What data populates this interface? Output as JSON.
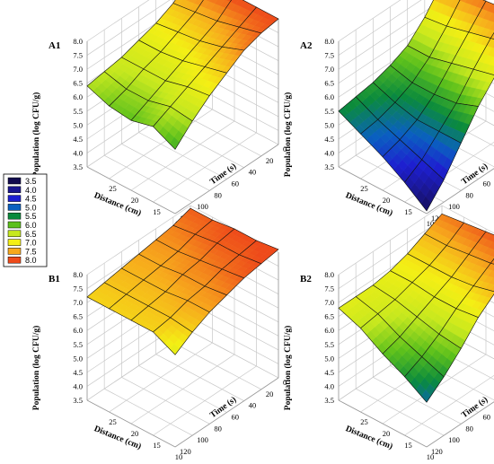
{
  "chart_data": [
    {
      "type": "surface3d",
      "panel_label": "A1",
      "xlabel": "Distance (cm)",
      "ylabel": "Time (s)",
      "zlabel": "Population (log CFU/g)",
      "distance_ticks": [
        "25",
        "20",
        "15",
        "10"
      ],
      "time_ticks": [
        "0",
        "20",
        "40",
        "60",
        "80",
        "100",
        "120"
      ],
      "z_ticks": [
        "3.5",
        "4.0",
        "4.5",
        "5.0",
        "5.5",
        "6.0",
        "6.5",
        "7.0",
        "7.5",
        "8.0"
      ],
      "zlim": [
        3.5,
        8.0
      ],
      "distance": [
        10,
        15,
        20,
        25,
        30
      ],
      "time": [
        0,
        20,
        40,
        60,
        80,
        100,
        120
      ],
      "z": [
        [
          8.0,
          7.9,
          7.7,
          7.3,
          6.9,
          6.4,
          5.8
        ],
        [
          8.0,
          7.7,
          7.4,
          7.1,
          6.8,
          6.5,
          6.2
        ],
        [
          8.0,
          7.5,
          7.2,
          6.9,
          6.6,
          6.3,
          6.0
        ],
        [
          7.9,
          7.4,
          7.1,
          6.8,
          6.6,
          6.3,
          6.1
        ],
        [
          7.8,
          7.3,
          7.0,
          6.8,
          6.6,
          6.5,
          6.4
        ]
      ]
    },
    {
      "type": "surface3d",
      "panel_label": "A2",
      "xlabel": "Distance (cm)",
      "ylabel": "Time (s)",
      "zlabel": "Population (log CFU/g)",
      "distance_ticks": [
        "25",
        "20",
        "15",
        "10"
      ],
      "time_ticks": [
        "0",
        "20",
        "40",
        "60",
        "80",
        "100",
        "120"
      ],
      "z_ticks": [
        "3.5",
        "4.0",
        "4.5",
        "5.0",
        "5.5",
        "6.0",
        "6.5",
        "7.0",
        "7.5",
        "8.0"
      ],
      "zlim": [
        3.5,
        8.0
      ],
      "distance": [
        10,
        15,
        20,
        25,
        30
      ],
      "time": [
        0,
        20,
        40,
        60,
        80,
        100,
        120
      ],
      "z": [
        [
          7.9,
          7.5,
          6.8,
          6.1,
          5.2,
          4.3,
          3.6
        ],
        [
          7.9,
          7.3,
          6.6,
          5.8,
          5.2,
          4.6,
          4.2
        ],
        [
          7.8,
          7.1,
          6.4,
          5.7,
          5.2,
          4.9,
          4.7
        ],
        [
          7.7,
          6.9,
          6.2,
          5.7,
          5.4,
          5.2,
          5.1
        ],
        [
          7.6,
          6.8,
          6.2,
          5.9,
          5.7,
          5.6,
          5.5
        ]
      ]
    },
    {
      "type": "surface3d",
      "panel_label": "B1",
      "xlabel": "Distance (cm)",
      "ylabel": "Time (s)",
      "zlabel": "Population (log CFU/g)",
      "distance_ticks": [
        "25",
        "20",
        "15",
        "10"
      ],
      "time_ticks": [
        "0",
        "20",
        "40",
        "60",
        "80",
        "100",
        "120"
      ],
      "z_ticks": [
        "3.5",
        "4.0",
        "4.5",
        "5.0",
        "5.5",
        "6.0",
        "6.5",
        "7.0",
        "7.5",
        "8.0"
      ],
      "zlim": [
        3.5,
        8.0
      ],
      "distance": [
        10,
        15,
        20,
        25,
        30
      ],
      "time": [
        0,
        20,
        40,
        60,
        80,
        100,
        120
      ],
      "z": [
        [
          8.1,
          8.0,
          7.9,
          7.7,
          7.5,
          7.2,
          6.8
        ],
        [
          8.0,
          7.9,
          7.8,
          7.6,
          7.5,
          7.3,
          7.2
        ],
        [
          8.0,
          7.9,
          7.7,
          7.6,
          7.4,
          7.3,
          7.2
        ],
        [
          7.9,
          7.8,
          7.6,
          7.5,
          7.4,
          7.3,
          7.2
        ],
        [
          7.9,
          7.7,
          7.6,
          7.5,
          7.4,
          7.3,
          7.2
        ]
      ]
    },
    {
      "type": "surface3d",
      "panel_label": "B2",
      "xlabel": "Distance (cm)",
      "ylabel": "Time (s)",
      "zlabel": "Population (log CFU/g)",
      "distance_ticks": [
        "25",
        "20",
        "15",
        "10"
      ],
      "time_ticks": [
        "0",
        "20",
        "40",
        "60",
        "80",
        "100",
        "120"
      ],
      "z_ticks": [
        "3.5",
        "4.0",
        "4.5",
        "5.0",
        "5.5",
        "6.0",
        "6.5",
        "7.0",
        "7.5",
        "8.0"
      ],
      "zlim": [
        3.5,
        8.0
      ],
      "distance": [
        10,
        15,
        20,
        25,
        30
      ],
      "time": [
        0,
        20,
        40,
        60,
        80,
        100,
        120
      ],
      "z": [
        [
          8.1,
          7.8,
          7.4,
          6.9,
          6.2,
          5.6,
          5.1
        ],
        [
          8.0,
          7.6,
          7.2,
          6.8,
          6.3,
          5.9,
          5.6
        ],
        [
          7.9,
          7.5,
          7.1,
          6.8,
          6.5,
          6.2,
          6.0
        ],
        [
          7.8,
          7.4,
          7.1,
          6.9,
          6.7,
          6.6,
          6.5
        ],
        [
          7.7,
          7.4,
          7.1,
          6.9,
          6.8,
          6.8,
          6.8
        ]
      ]
    }
  ],
  "legend": {
    "items": [
      {
        "label": "3.5",
        "color": "#120a4e"
      },
      {
        "label": "4.0",
        "color": "#1a168e"
      },
      {
        "label": "4.5",
        "color": "#1d1fd0"
      },
      {
        "label": "5.0",
        "color": "#0a60c0"
      },
      {
        "label": "5.5",
        "color": "#0a8a3c"
      },
      {
        "label": "6.0",
        "color": "#5cc01c"
      },
      {
        "label": "6.5",
        "color": "#c6e81e"
      },
      {
        "label": "7.0",
        "color": "#f4ef14"
      },
      {
        "label": "7.5",
        "color": "#f7a81c"
      },
      {
        "label": "8.0",
        "color": "#ee4a1a"
      }
    ]
  }
}
